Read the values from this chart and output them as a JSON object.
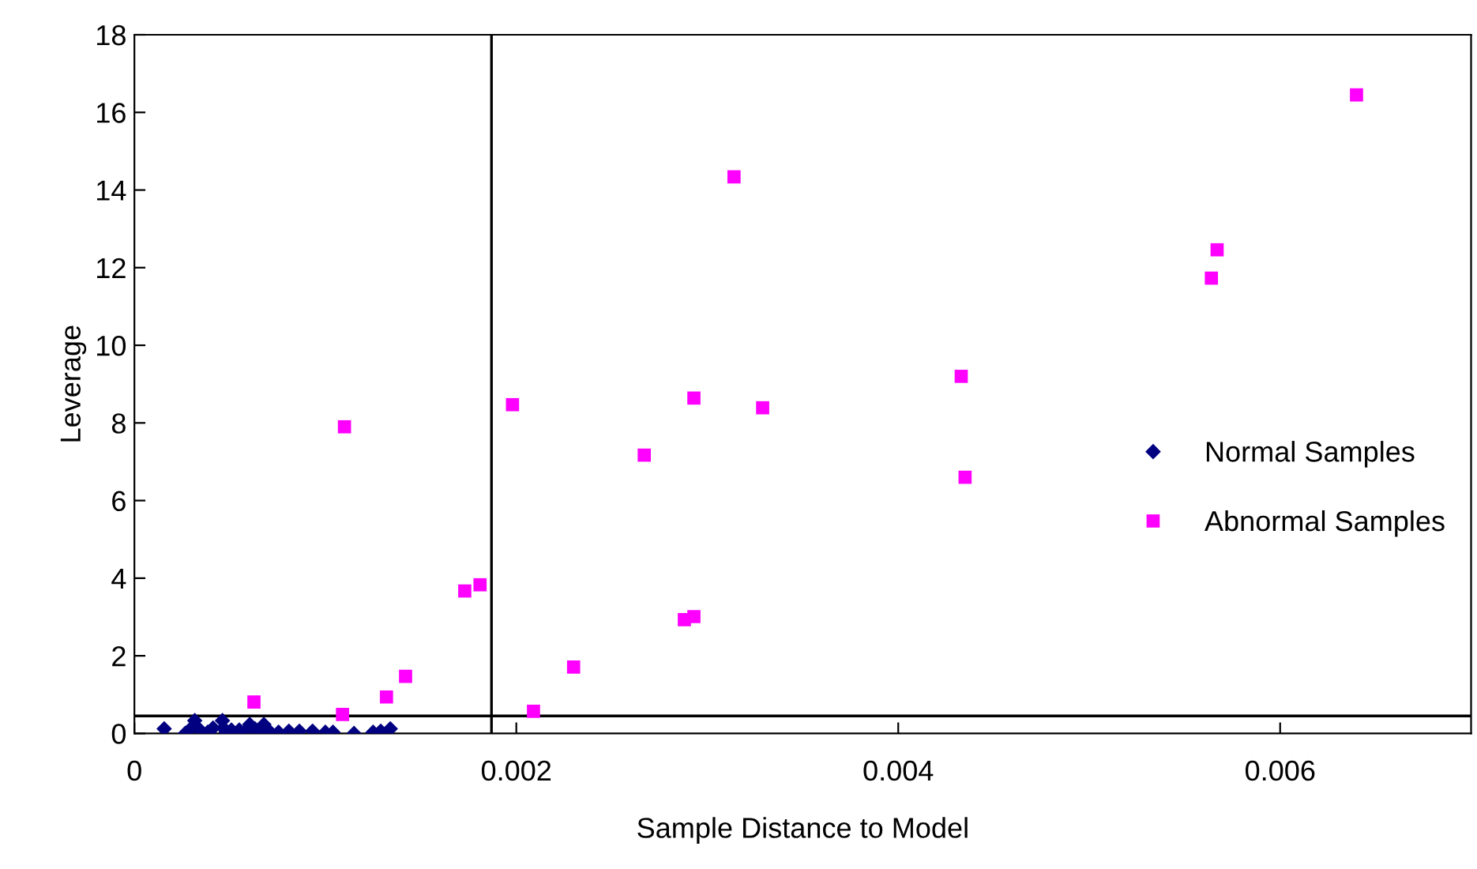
{
  "chart_data": {
    "type": "scatter",
    "xlabel": "Sample Distance to Model",
    "ylabel": "Leverage",
    "xlim": [
      0,
      0.007
    ],
    "xticks": [
      0,
      0.002,
      0.004,
      0.006
    ],
    "ylim": [
      0,
      18
    ],
    "yticks": [
      0,
      2,
      4,
      6,
      8,
      10,
      12,
      14,
      16,
      18
    ],
    "grid": false,
    "legend": "right",
    "series": [
      {
        "name": "Normal Samples",
        "color": "#000080",
        "marker": "diamond",
        "x": [
          0.000156,
          0.000266,
          0.000288,
          0.000316,
          0.000343,
          0.000384,
          0.000412,
          0.000461,
          0.000466,
          0.00048,
          0.000508,
          0.000549,
          0.000576,
          0.000604,
          0.000631,
          0.000658,
          0.000678,
          0.0007,
          0.000755,
          0.000809,
          0.000864,
          0.000933,
          0.001,
          0.00104,
          0.00115,
          0.00125,
          0.00129,
          0.00134
        ],
        "values": [
          0.12,
          0.0,
          0.09,
          0.33,
          0.09,
          0.03,
          0.14,
          0.33,
          0.14,
          0.03,
          0.09,
          0.09,
          0.03,
          0.23,
          0.12,
          0.09,
          0.23,
          0.09,
          0.03,
          0.06,
          0.06,
          0.06,
          0.03,
          0.03,
          0.0,
          0.03,
          0.06,
          0.12
        ]
      },
      {
        "name": "Abnormal Samples",
        "color": "#ff00ff",
        "marker": "square",
        "x": [
          0.000626,
          0.0011,
          0.00109,
          0.00132,
          0.00142,
          0.00173,
          0.00181,
          0.00198,
          0.00209,
          0.0023,
          0.00267,
          0.00288,
          0.00293,
          0.00293,
          0.00314,
          0.00329,
          0.00433,
          0.00435,
          0.00564,
          0.00567,
          0.0064
        ],
        "values": [
          0.81,
          7.9,
          0.49,
          0.94,
          1.47,
          3.67,
          3.83,
          8.47,
          0.57,
          1.71,
          7.17,
          2.93,
          3.01,
          8.64,
          14.34,
          8.39,
          9.2,
          6.6,
          11.73,
          12.46,
          16.45
        ]
      }
    ],
    "ref_lines": [
      {
        "axis": "x",
        "value": 0.00187,
        "color": "#000000"
      },
      {
        "axis": "y",
        "value": 0.45,
        "color": "#000000"
      }
    ]
  }
}
